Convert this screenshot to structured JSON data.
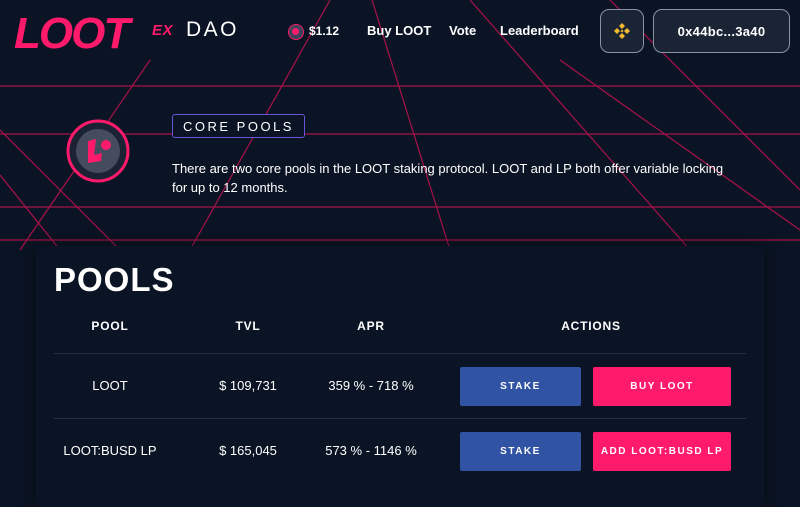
{
  "header": {
    "logo_text": "LOOT",
    "logo_suffix": "EX",
    "dao_label": "DAO",
    "price": "$1.12",
    "nav": [
      {
        "label": "Buy LOOT"
      },
      {
        "label": "Vote"
      },
      {
        "label": "Leaderboard"
      }
    ],
    "chain_icon": "binance-icon",
    "wallet_address": "0x44bc...3a40"
  },
  "intro": {
    "section_label": "CORE POOLS",
    "description": "There are two core pools in the LOOT staking protocol. LOOT and LP both offer variable locking for up to 12 months."
  },
  "pools": {
    "title": "POOLS",
    "columns": [
      "POOL",
      "TVL",
      "APR",
      "ACTIONS"
    ],
    "rows": [
      {
        "pool": "LOOT",
        "tvl": "$ 109,731",
        "apr": "359 % - 718 %",
        "action_primary": "STAKE",
        "action_secondary": "BUY LOOT"
      },
      {
        "pool": "LOOT:BUSD LP",
        "tvl": "$ 165,045",
        "apr": "573 % - 1146 %",
        "action_primary": "STAKE",
        "action_secondary": "ADD LOOT:BUSD LP"
      }
    ]
  },
  "colors": {
    "background": "#0b1424",
    "accent_pink": "#ff1a6b",
    "stake_blue": "#3153a3",
    "chip_border": "#6a54d6",
    "grid_line": "#c4124f"
  }
}
